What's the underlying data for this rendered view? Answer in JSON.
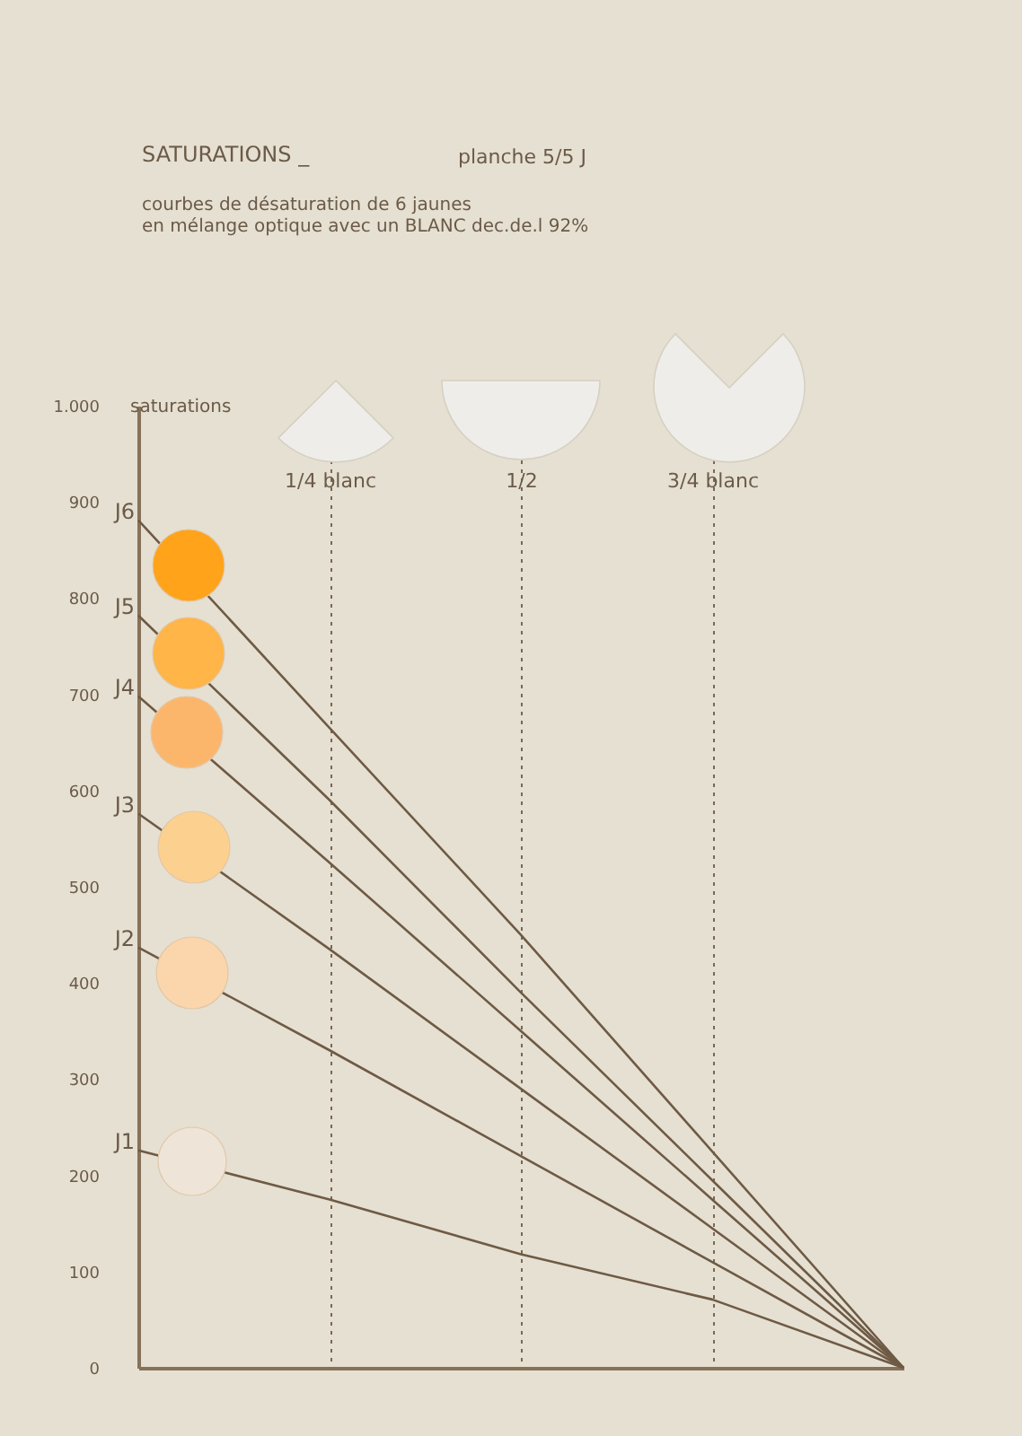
{
  "chart_data": {
    "type": "line",
    "title": "SATURATIONS _",
    "subtitle": "courbes de désaturation de 6 jaunes\nen mélange optique avec un BLANC dec.de.l 92%",
    "annotations": [
      "planche 5/5 J"
    ],
    "ylabel": "saturations",
    "categories": [
      null,
      "1/4 blanc",
      "1/2",
      "3/4 blanc",
      null
    ],
    "ylim": [
      0,
      1000
    ],
    "yticks": [
      0,
      100,
      200,
      300,
      400,
      500,
      600,
      700,
      800,
      900,
      {
        "value": 1000,
        "label": "1.000"
      }
    ],
    "grid": "x",
    "legend": false,
    "marker": "none",
    "line_style": "solid",
    "series": [
      {
        "name": "J6",
        "color": "#6e5a45",
        "values": [
          881,
          665,
          450,
          225,
          0
        ]
      },
      {
        "name": "J5",
        "color": "#6e5a45",
        "values": [
          782,
          590,
          390,
          195,
          0
        ]
      },
      {
        "name": "J4",
        "color": "#6e5a45",
        "values": [
          698,
          525,
          350,
          175,
          0
        ]
      },
      {
        "name": "J3",
        "color": "#6e5a45",
        "values": [
          576,
          435,
          290,
          145,
          0
        ]
      },
      {
        "name": "J2",
        "color": "#6e5a45",
        "values": [
          437,
          330,
          220,
          110,
          0
        ]
      },
      {
        "name": "J1",
        "color": "#6e5a45",
        "values": [
          226,
          175,
          118,
          71,
          0
        ]
      }
    ]
  }
}
